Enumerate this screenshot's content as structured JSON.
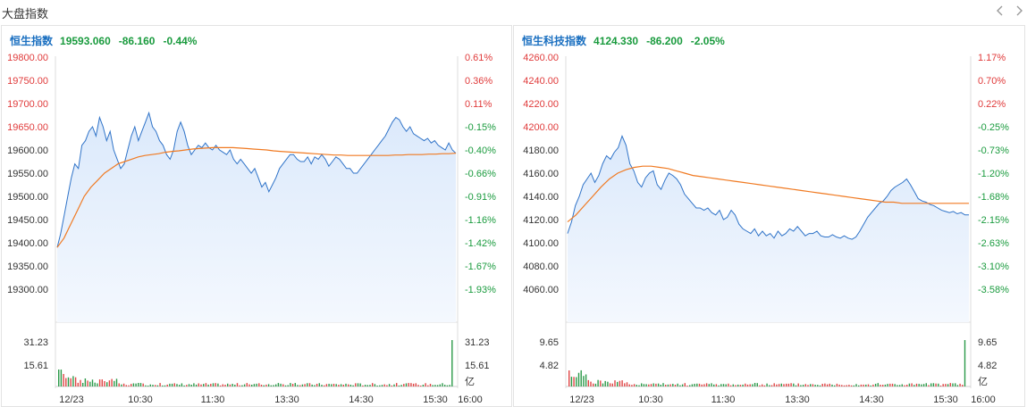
{
  "header": {
    "title": "大盘指数",
    "prev_icon": "chevron-left-icon",
    "next_icon": "chevron-right-icon"
  },
  "colors": {
    "price_line": "#2f73c8",
    "avg_line": "#f07a22",
    "area_top": "#dbe9fb",
    "area_bottom": "#f4f8fe",
    "up": "#e03a3a",
    "down": "#1a9b3e",
    "name": "#1a6fc0",
    "volume_up": "#e04444",
    "volume_down": "#2b9a49"
  },
  "panels": [
    {
      "name": "恒生指数",
      "price": "19593.060",
      "change": "-86.160",
      "pct": "-0.44%"
    },
    {
      "name": "恒生科技指数",
      "price": "4124.330",
      "change": "-86.200",
      "pct": "-2.05%"
    }
  ],
  "chart_data": [
    {
      "type": "line",
      "title": "恒生指数",
      "x_labels": [
        "12/23",
        "10:30",
        "11:30",
        "13:30",
        "14:30",
        "15:30",
        "16:00"
      ],
      "y_left_ticks": [
        "19800.00",
        "19750.00",
        "19700.00",
        "19650.00",
        "19600.00",
        "19550.00",
        "19500.00",
        "19450.00",
        "19400.00",
        "19350.00",
        "19300.00"
      ],
      "y_right_ticks": [
        "0.61%",
        "0.36%",
        "0.11%",
        "-0.15%",
        "-0.40%",
        "-0.66%",
        "-0.91%",
        "-1.16%",
        "-1.42%",
        "-1.67%",
        "-1.93%"
      ],
      "ylim": [
        19260,
        19820
      ],
      "series": [
        {
          "values": [
            19390,
            19420,
            19460,
            19500,
            19540,
            19570,
            19560,
            19610,
            19620,
            19640,
            19650,
            19630,
            19670,
            19650,
            19620,
            19640,
            19600,
            19580,
            19560,
            19570,
            19600,
            19630,
            19650,
            19620,
            19640,
            19660,
            19680,
            19650,
            19640,
            19620,
            19610,
            19590,
            19580,
            19600,
            19640,
            19660,
            19640,
            19610,
            19590,
            19600,
            19610,
            19605,
            19615,
            19605,
            19600,
            19610,
            19600,
            19595,
            19590,
            19600,
            19580,
            19570,
            19580,
            19570,
            19560,
            19550,
            19560,
            19540,
            19520,
            19530,
            19510,
            19525,
            19540,
            19560,
            19570,
            19580,
            19590,
            19590,
            19580,
            19575,
            19575,
            19585,
            19570,
            19585,
            19580,
            19590,
            19580,
            19565,
            19575,
            19585,
            19580,
            19570,
            19560,
            19560,
            19550,
            19550,
            19560,
            19570,
            19580,
            19590,
            19600,
            19610,
            19620,
            19630,
            19645,
            19660,
            19670,
            19665,
            19650,
            19640,
            19650,
            19635,
            19630,
            19625,
            19620,
            19625,
            19615,
            19620,
            19610,
            19605,
            19600,
            19615,
            19600,
            19593
          ]
        },
        {
          "values": [
            19390,
            19410,
            19440,
            19470,
            19500,
            19520,
            19535,
            19550,
            19560,
            19570,
            19575,
            19580,
            19585,
            19588,
            19590,
            19592,
            19595,
            19597,
            19598,
            19600,
            19602,
            19603,
            19604,
            19605,
            19605,
            19605,
            19605,
            19604,
            19603,
            19602,
            19601,
            19600,
            19598,
            19597,
            19596,
            19595,
            19594,
            19593,
            19592,
            19591,
            19590,
            19589,
            19589,
            19588,
            19588,
            19588,
            19588,
            19588,
            19588,
            19588,
            19589,
            19589,
            19590,
            19590,
            19590,
            19591,
            19591,
            19592,
            19592,
            19593
          ]
        }
      ],
      "volume": {
        "ticks_left": [
          "31.23",
          "15.61"
        ],
        "ticks_right": [
          "31.23",
          "15.61",
          "亿"
        ],
        "max": 31.23
      }
    },
    {
      "type": "line",
      "title": "恒生科技指数",
      "x_labels": [
        "12/23",
        "10:30",
        "11:30",
        "13:30",
        "14:30",
        "15:30",
        "16:00"
      ],
      "y_left_ticks": [
        "4260.00",
        "4240.00",
        "4220.00",
        "4200.00",
        "4180.00",
        "4160.00",
        "4140.00",
        "4120.00",
        "4100.00",
        "4080.00",
        "4060.00"
      ],
      "y_right_ticks": [
        "1.17%",
        "0.70%",
        "0.22%",
        "-0.25%",
        "-0.73%",
        "-1.20%",
        "-1.68%",
        "-2.15%",
        "-2.63%",
        "-3.10%",
        "-3.58%"
      ],
      "ylim": [
        4044,
        4264
      ],
      "series": [
        {
          "values": [
            4108,
            4118,
            4132,
            4140,
            4150,
            4155,
            4160,
            4152,
            4158,
            4168,
            4175,
            4172,
            4178,
            4182,
            4192,
            4184,
            4168,
            4162,
            4152,
            4148,
            4156,
            4160,
            4162,
            4150,
            4146,
            4154,
            4160,
            4158,
            4155,
            4150,
            4142,
            4138,
            4134,
            4130,
            4130,
            4128,
            4130,
            4126,
            4124,
            4128,
            4120,
            4122,
            4128,
            4124,
            4116,
            4112,
            4110,
            4108,
            4112,
            4106,
            4110,
            4106,
            4108,
            4104,
            4110,
            4106,
            4108,
            4112,
            4110,
            4114,
            4110,
            4106,
            4108,
            4108,
            4110,
            4106,
            4105,
            4105,
            4107,
            4105,
            4104,
            4106,
            4104,
            4103,
            4105,
            4110,
            4116,
            4122,
            4126,
            4130,
            4134,
            4136,
            4140,
            4145,
            4148,
            4150,
            4152,
            4155,
            4150,
            4144,
            4138,
            4136,
            4135,
            4133,
            4132,
            4130,
            4128,
            4127,
            4126,
            4127,
            4125,
            4126,
            4124,
            4124
          ]
        },
        {
          "values": [
            4118,
            4124,
            4132,
            4140,
            4148,
            4155,
            4160,
            4163,
            4165,
            4166,
            4166,
            4165,
            4164,
            4162,
            4160,
            4158,
            4157,
            4156,
            4155,
            4154,
            4153,
            4152,
            4151,
            4150,
            4149,
            4148,
            4147,
            4146,
            4145,
            4144,
            4143,
            4142,
            4141,
            4140,
            4139,
            4138,
            4137,
            4136,
            4135,
            4135,
            4134,
            4134,
            4134,
            4134,
            4134,
            4134,
            4134,
            4134,
            4134
          ]
        }
      ],
      "volume": {
        "ticks_left": [
          "9.65",
          "4.82"
        ],
        "ticks_right": [
          "9.65",
          "4.82",
          "亿"
        ],
        "max": 9.65
      }
    }
  ]
}
